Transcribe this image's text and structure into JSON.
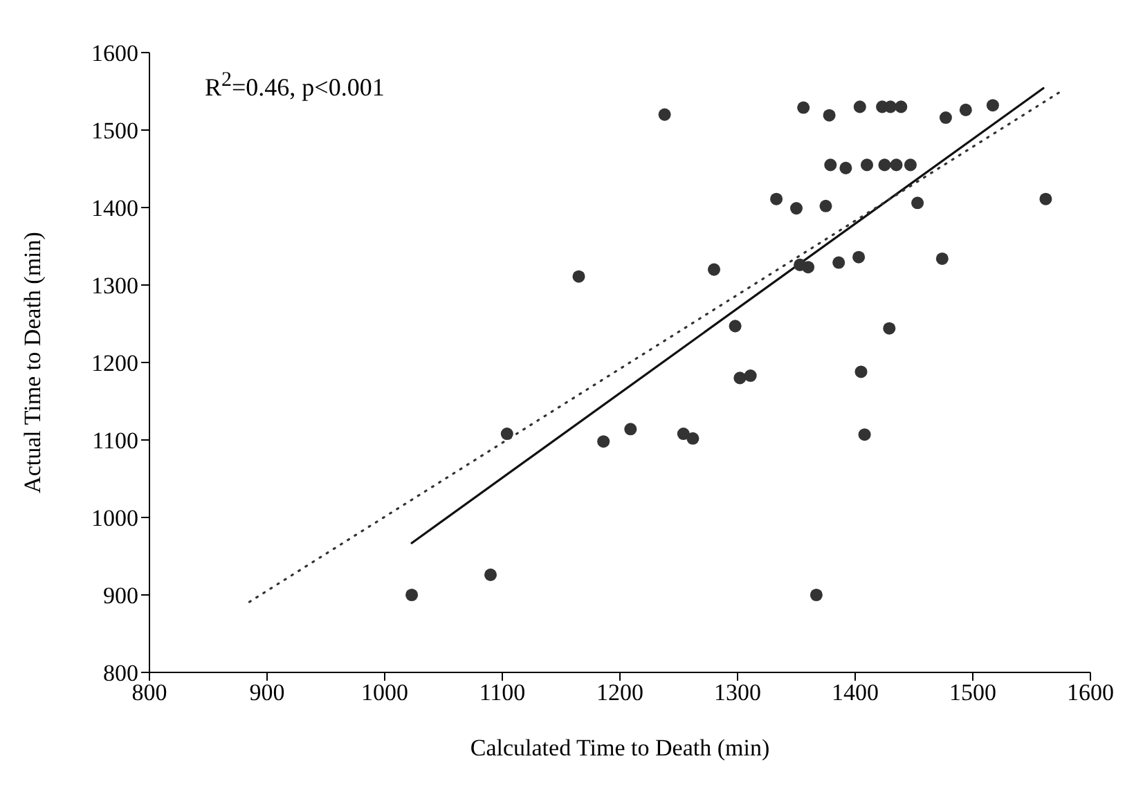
{
  "chart_data": {
    "type": "scatter",
    "xlabel": "Calculated Time to Death (min)",
    "ylabel": "Actual Time to Death (min)",
    "annotations": [
      "R$^{2}$=0.46, p<0.001"
    ],
    "xlim": [
      800,
      1600
    ],
    "xticks": [
      800,
      900,
      1000,
      1100,
      1200,
      1300,
      1400,
      1500,
      1600
    ],
    "ylim": [
      800,
      1600
    ],
    "yticks": [
      800,
      900,
      1000,
      1100,
      1200,
      1300,
      1400,
      1500,
      1600
    ],
    "marker": "circle",
    "series": [
      {
        "color": "#333333",
        "x": [
          1023,
          1090,
          1104,
          1165,
          1186,
          1209,
          1238,
          1254,
          1262,
          1280,
          1298,
          1302,
          1311,
          1333,
          1350,
          1353,
          1356,
          1360,
          1367,
          1375,
          1378,
          1379,
          1386,
          1392,
          1403,
          1404,
          1405,
          1408,
          1410,
          1423,
          1425,
          1429,
          1430,
          1435,
          1439,
          1447,
          1453,
          1474,
          1477,
          1494,
          1517,
          1562
        ],
        "values": [
          900,
          926,
          1108,
          1311,
          1098,
          1114,
          1520,
          1108,
          1102,
          1320,
          1247,
          1180,
          1183,
          1411,
          1399,
          1326,
          1529,
          1323,
          900,
          1402,
          1519,
          1455,
          1329,
          1451,
          1336,
          1530,
          1188,
          1107,
          1455,
          1530,
          1455,
          1244,
          1530,
          1455,
          1530,
          1455,
          1406,
          1334,
          1516,
          1526,
          1532,
          1411
        ]
      },
      {
        "type": "line",
        "color": "#111111",
        "line_style": "solid",
        "marker": "none",
        "x": [
          1023,
          1560
        ],
        "values": [
          967,
          1554
        ]
      },
      {
        "type": "line",
        "color": "#333333",
        "line_style": "dotted",
        "marker": "none",
        "x": [
          885,
          1575
        ],
        "values": [
          891,
          1550
        ]
      }
    ]
  }
}
